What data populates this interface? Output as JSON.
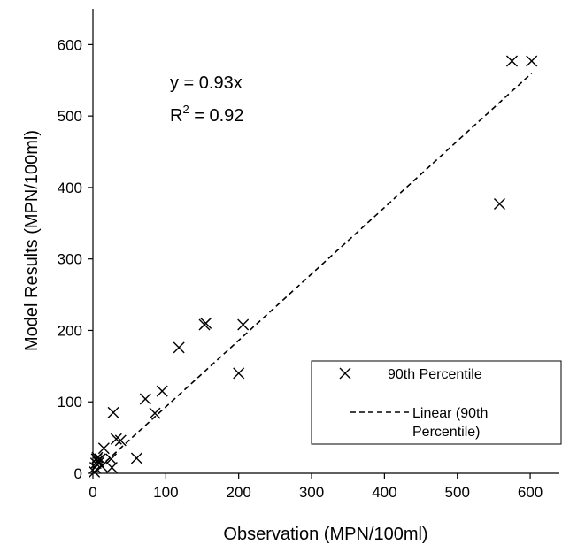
{
  "chart_data": {
    "type": "scatter",
    "xlabel": "Observation (MPN/100ml)",
    "ylabel": "Model Results (MPN/100ml)",
    "xlim": [
      0,
      640
    ],
    "ylim": [
      0,
      650
    ],
    "xticks": [
      0,
      100,
      200,
      300,
      400,
      500,
      600
    ],
    "yticks": [
      0,
      100,
      200,
      300,
      400,
      500,
      600
    ],
    "grid": false,
    "legend_position": "bottom-right",
    "annotations": {
      "equation": "y = 0.93x",
      "r2_prefix": "R",
      "r2_sup": "2",
      "r2_value": " = 0.92"
    },
    "series": [
      {
        "name": "90th Percentile",
        "kind": "scatter",
        "marker": "x",
        "points": [
          [
            2,
            2
          ],
          [
            3,
            8
          ],
          [
            4,
            14
          ],
          [
            5,
            20
          ],
          [
            6,
            22
          ],
          [
            7,
            18
          ],
          [
            8,
            15
          ],
          [
            10,
            20
          ],
          [
            12,
            10
          ],
          [
            15,
            35
          ],
          [
            25,
            20
          ],
          [
            26,
            8
          ],
          [
            28,
            85
          ],
          [
            32,
            48
          ],
          [
            38,
            46
          ],
          [
            60,
            21
          ],
          [
            72,
            104
          ],
          [
            85,
            84
          ],
          [
            95,
            115
          ],
          [
            118,
            176
          ],
          [
            153,
            208
          ],
          [
            155,
            210
          ],
          [
            200,
            140
          ],
          [
            206,
            208
          ],
          [
            558,
            377
          ],
          [
            575,
            577
          ],
          [
            602,
            577
          ]
        ]
      },
      {
        "name": "Linear (90th Percentile)",
        "name_lines": [
          "Linear (90th",
          "Percentile)"
        ],
        "kind": "line",
        "style": "dashed",
        "slope": 0.93,
        "x_range": [
          0,
          602
        ]
      }
    ],
    "colors": {
      "marker": "#000000",
      "trendline": "#000000",
      "axis": "#000000"
    }
  }
}
